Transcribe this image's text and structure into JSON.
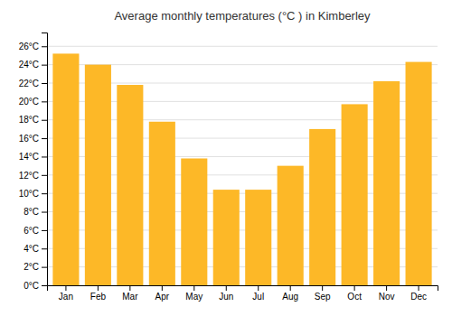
{
  "chart_data": {
    "type": "bar",
    "title": "Average monthly temperatures (°C ) in Kimberley",
    "categories": [
      "Jan",
      "Feb",
      "Mar",
      "Apr",
      "May",
      "Jun",
      "Jul",
      "Aug",
      "Sep",
      "Oct",
      "Nov",
      "Dec"
    ],
    "values": [
      25.2,
      24.0,
      21.8,
      17.8,
      13.8,
      10.4,
      10.4,
      13.0,
      17.0,
      19.7,
      22.2,
      24.3
    ],
    "color": "#FDB827",
    "ylim": [
      0,
      27.5
    ],
    "yticks": [
      {
        "value": 0,
        "label": "0°C"
      },
      {
        "value": 2,
        "label": "2°C"
      },
      {
        "value": 4,
        "label": "4°C"
      },
      {
        "value": 6,
        "label": "6°C"
      },
      {
        "value": 8,
        "label": "8°C"
      },
      {
        "value": 10,
        "label": "10°C"
      },
      {
        "value": 12,
        "label": "12°C"
      },
      {
        "value": 14,
        "label": "14°C"
      },
      {
        "value": 16,
        "label": "16°C"
      },
      {
        "value": 18,
        "label": "18°C"
      },
      {
        "value": 20,
        "label": "20°C"
      },
      {
        "value": 22,
        "label": "22°C"
      },
      {
        "value": 24,
        "label": "24°C"
      },
      {
        "value": 26,
        "label": "26°C"
      }
    ],
    "grid": true
  }
}
